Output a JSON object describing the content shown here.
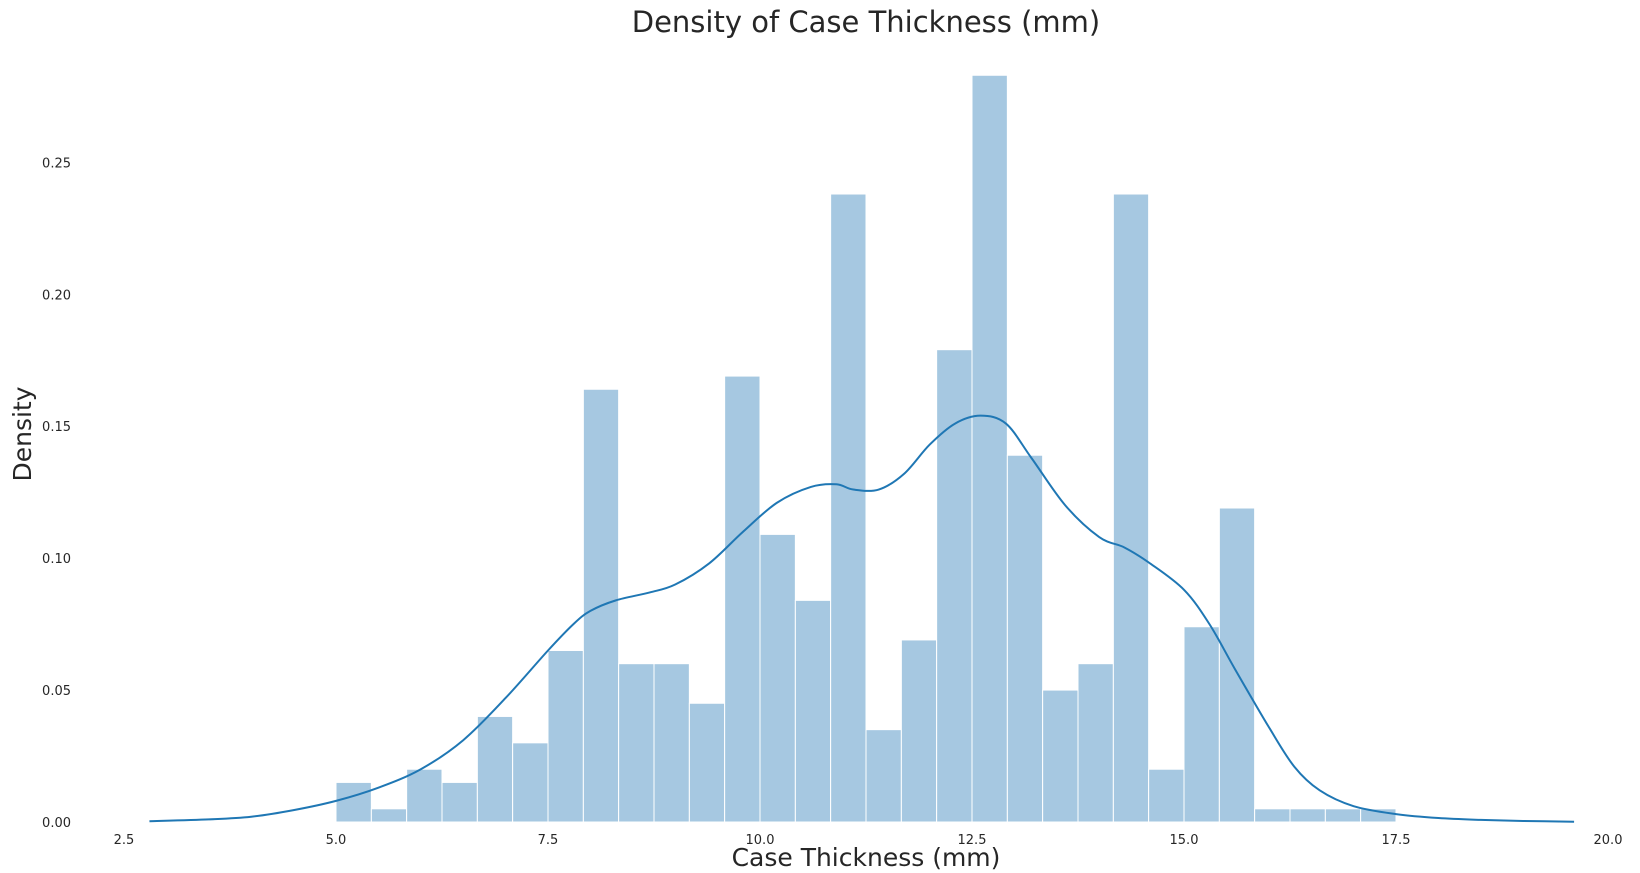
{
  "chart_data": {
    "type": "histogram",
    "title": "Density of Case Thickness (mm)",
    "xlabel": "Case Thickness (mm)",
    "ylabel": "Density",
    "xlim": [
      2.5,
      20.0
    ],
    "ylim": [
      0.0,
      0.285
    ],
    "x_ticks": [
      "2.5",
      "5.0",
      "7.5",
      "10.0",
      "12.5",
      "15.0",
      "17.5",
      "20.0"
    ],
    "y_ticks": [
      "0.00",
      "0.05",
      "0.10",
      "0.15",
      "0.20",
      "0.25"
    ],
    "grid": false,
    "bar_color": "#a6c8e1",
    "bar_edge_color": "#ffffff",
    "kde_color": "#1f77b4",
    "bins": [
      {
        "start": 5.0,
        "end": 5.417,
        "density": 0.015
      },
      {
        "start": 5.417,
        "end": 5.833,
        "density": 0.005
      },
      {
        "start": 5.833,
        "end": 6.25,
        "density": 0.02
      },
      {
        "start": 6.25,
        "end": 6.667,
        "density": 0.015
      },
      {
        "start": 6.667,
        "end": 7.083,
        "density": 0.04
      },
      {
        "start": 7.083,
        "end": 7.5,
        "density": 0.03
      },
      {
        "start": 7.5,
        "end": 7.917,
        "density": 0.065
      },
      {
        "start": 7.917,
        "end": 8.333,
        "density": 0.164
      },
      {
        "start": 8.333,
        "end": 8.75,
        "density": 0.06
      },
      {
        "start": 8.75,
        "end": 9.167,
        "density": 0.06
      },
      {
        "start": 9.167,
        "end": 9.583,
        "density": 0.045
      },
      {
        "start": 9.583,
        "end": 10.0,
        "density": 0.169
      },
      {
        "start": 10.0,
        "end": 10.417,
        "density": 0.109
      },
      {
        "start": 10.417,
        "end": 10.833,
        "density": 0.084
      },
      {
        "start": 10.833,
        "end": 11.25,
        "density": 0.238
      },
      {
        "start": 11.25,
        "end": 11.667,
        "density": 0.035
      },
      {
        "start": 11.667,
        "end": 12.083,
        "density": 0.069
      },
      {
        "start": 12.083,
        "end": 12.5,
        "density": 0.179
      },
      {
        "start": 12.5,
        "end": 12.917,
        "density": 0.283
      },
      {
        "start": 12.917,
        "end": 13.333,
        "density": 0.139
      },
      {
        "start": 13.333,
        "end": 13.75,
        "density": 0.05
      },
      {
        "start": 13.75,
        "end": 14.167,
        "density": 0.06
      },
      {
        "start": 14.167,
        "end": 14.583,
        "density": 0.238
      },
      {
        "start": 14.583,
        "end": 15.0,
        "density": 0.02
      },
      {
        "start": 15.0,
        "end": 15.417,
        "density": 0.074
      },
      {
        "start": 15.417,
        "end": 15.833,
        "density": 0.119
      },
      {
        "start": 15.833,
        "end": 16.25,
        "density": 0.005
      },
      {
        "start": 16.25,
        "end": 16.667,
        "density": 0.005
      },
      {
        "start": 16.667,
        "end": 17.083,
        "density": 0.005
      },
      {
        "start": 17.083,
        "end": 17.5,
        "density": 0.005
      }
    ],
    "kde": {
      "name": "",
      "x": [
        2.8,
        3.5,
        4.0,
        4.5,
        5.0,
        5.5,
        6.0,
        6.5,
        7.0,
        7.5,
        7.8,
        8.0,
        8.3,
        8.7,
        9.0,
        9.4,
        9.8,
        10.2,
        10.6,
        10.9,
        11.1,
        11.4,
        11.7,
        12.0,
        12.3,
        12.6,
        12.9,
        13.2,
        13.6,
        14.0,
        14.3,
        14.6,
        15.0,
        15.3,
        15.6,
        16.0,
        16.3,
        16.6,
        17.0,
        17.5,
        18.0,
        18.5,
        19.0,
        19.6
      ],
      "y": [
        0.0003,
        0.001,
        0.002,
        0.0045,
        0.008,
        0.013,
        0.02,
        0.031,
        0.047,
        0.065,
        0.075,
        0.08,
        0.084,
        0.087,
        0.09,
        0.098,
        0.11,
        0.121,
        0.127,
        0.128,
        0.126,
        0.126,
        0.132,
        0.143,
        0.151,
        0.154,
        0.151,
        0.138,
        0.12,
        0.108,
        0.104,
        0.098,
        0.088,
        0.075,
        0.058,
        0.036,
        0.021,
        0.012,
        0.006,
        0.003,
        0.0015,
        0.0008,
        0.0004,
        0.0001
      ]
    }
  }
}
